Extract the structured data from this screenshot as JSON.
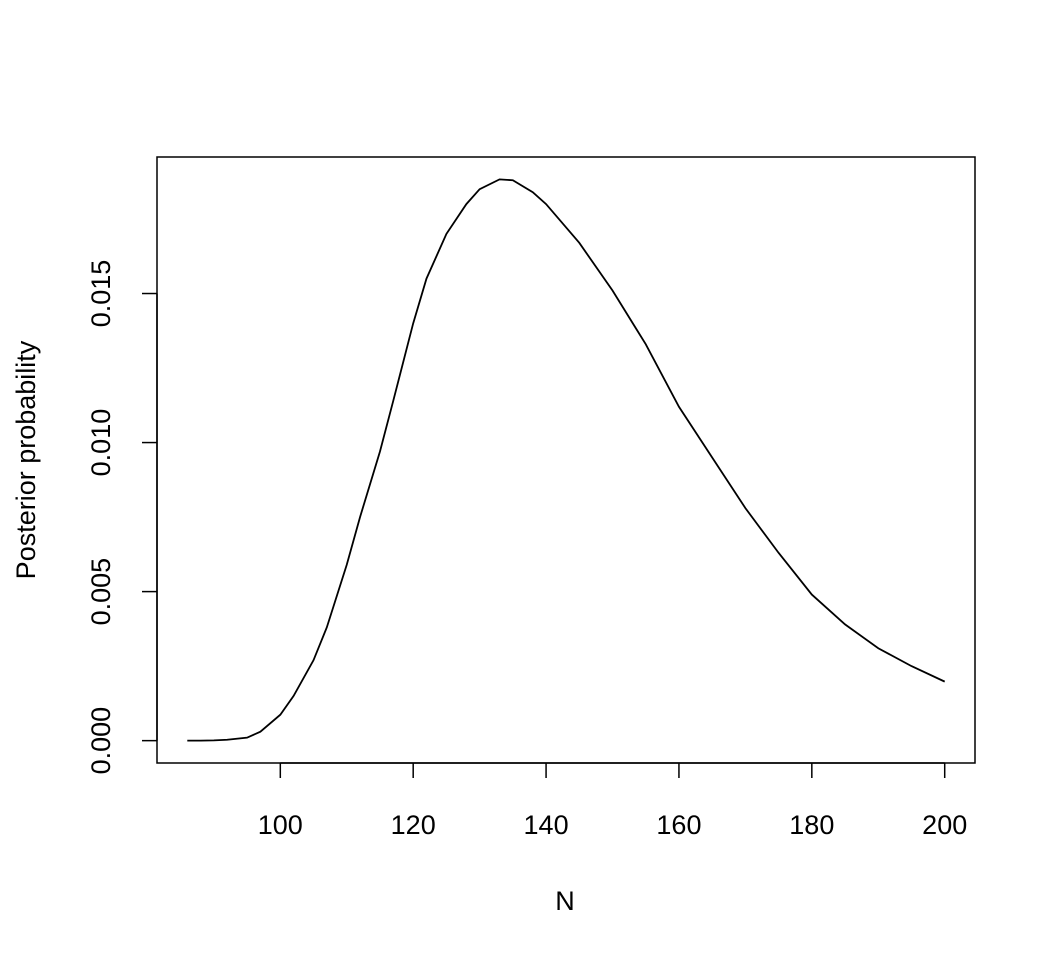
{
  "chart_data": {
    "type": "line",
    "xlabel": "N",
    "ylabel": "Posterior probability",
    "x": [
      86,
      88,
      90,
      92,
      95,
      97,
      100,
      102,
      105,
      107,
      110,
      112,
      115,
      117,
      120,
      122,
      125,
      128,
      130,
      133,
      135,
      138,
      140,
      145,
      150,
      155,
      160,
      165,
      170,
      175,
      180,
      185,
      190,
      195,
      200
    ],
    "series": [
      {
        "color": "#000000",
        "values": [
          0,
          0,
          1e-05,
          3e-05,
          0.0001,
          0.0003,
          0.00087,
          0.0015,
          0.0027,
          0.0038,
          0.0059,
          0.0075,
          0.0097,
          0.0114,
          0.014,
          0.0155,
          0.017,
          0.018,
          0.0185,
          0.01883,
          0.0188,
          0.0184,
          0.018,
          0.0167,
          0.0151,
          0.0133,
          0.0112,
          0.0095,
          0.0078,
          0.0063,
          0.0049,
          0.0039,
          0.0031,
          0.0025,
          0.00198
        ]
      }
    ],
    "xlim": [
      81.44,
      204.56
    ],
    "ylim": [
      -0.00075,
      0.01958
    ],
    "xticks": [
      100,
      120,
      140,
      160,
      180,
      200
    ],
    "yticks": [
      {
        "value": 0,
        "label": "0.000"
      },
      0.005,
      {
        "value": 0.01,
        "label": "0.010"
      },
      0.015
    ]
  }
}
